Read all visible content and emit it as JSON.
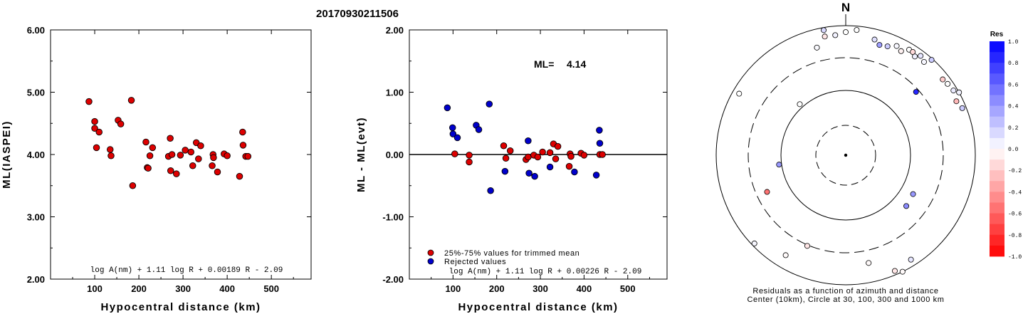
{
  "title": "20170930211506",
  "colors": {
    "red": "#dd0000",
    "blue": "#0000cc",
    "frame": "#000000"
  },
  "chart_data": [
    {
      "type": "scatter",
      "xlabel": "Hypocentral distance (km)",
      "ylabel": "ML(IASPEI)",
      "xlim": [
        0,
        590
      ],
      "ylim": [
        2.0,
        6.0
      ],
      "xticks": [
        "100",
        "200",
        "300",
        "400",
        "500"
      ],
      "xtick_values": [
        100,
        200,
        300,
        400,
        500
      ],
      "yticks": [
        "2.00",
        "3.00",
        "4.00",
        "5.00",
        "6.00"
      ],
      "ytick_values": [
        2,
        3,
        4,
        5,
        6
      ],
      "formula": "log A(nm) + 1.11 log R + 0.00189 R - 2.09",
      "series": [
        {
          "color": "red",
          "points": [
            [
              87,
              4.85
            ],
            [
              100,
              4.53
            ],
            [
              100,
              4.42
            ],
            [
              104,
              4.11
            ],
            [
              110,
              4.36
            ],
            [
              135,
              4.08
            ],
            [
              137,
              3.98
            ],
            [
              153,
              4.55
            ],
            [
              159,
              4.49
            ],
            [
              183,
              4.87
            ],
            [
              186,
              3.5
            ],
            [
              216,
              4.2
            ],
            [
              219,
              3.79
            ],
            [
              221,
              3.78
            ],
            [
              225,
              3.98
            ],
            [
              231,
              4.11
            ],
            [
              267,
              3.97
            ],
            [
              271,
              4.26
            ],
            [
              272,
              3.74
            ],
            [
              275,
              4.0
            ],
            [
              285,
              3.69
            ],
            [
              294,
              3.99
            ],
            [
              305,
              4.07
            ],
            [
              318,
              4.04
            ],
            [
              322,
              3.82
            ],
            [
              330,
              4.19
            ],
            [
              335,
              3.93
            ],
            [
              340,
              4.14
            ],
            [
              366,
              3.82
            ],
            [
              368,
              4.0
            ],
            [
              369,
              3.95
            ],
            [
              378,
              3.72
            ],
            [
              393,
              4.01
            ],
            [
              400,
              3.98
            ],
            [
              428,
              3.65
            ],
            [
              435,
              4.36
            ],
            [
              436,
              4.15
            ],
            [
              442,
              3.97
            ],
            [
              447,
              3.97
            ]
          ]
        }
      ]
    },
    {
      "type": "scatter",
      "xlabel": "Hypocentral distance (km)",
      "ylabel": "ML - ML(evt)",
      "xlim": [
        0,
        590
      ],
      "ylim": [
        -2.0,
        2.0
      ],
      "xticks": [
        "100",
        "200",
        "300",
        "400",
        "500"
      ],
      "xtick_values": [
        100,
        200,
        300,
        400,
        500
      ],
      "yticks": [
        "-2.00",
        "-1.00",
        "0.00",
        "1.00",
        "2.00"
      ],
      "ytick_values": [
        -2,
        -1,
        0,
        1,
        2
      ],
      "reference_line": 0,
      "ml_label": "ML=",
      "ml_value": "4.14",
      "formula": "log A(nm) + 1.11 log R + 0.00226 R - 2.09",
      "legend": [
        {
          "label": "25%-75% values for trimmed mean",
          "color": "red"
        },
        {
          "label": "Rejected values",
          "color": "blue"
        }
      ],
      "series": [
        {
          "color": "red",
          "points": [
            [
              104,
              0.01
            ],
            [
              137,
              -0.01
            ],
            [
              137,
              -0.12
            ],
            [
              216,
              0.14
            ],
            [
              221,
              -0.06
            ],
            [
              231,
              0.06
            ],
            [
              267,
              -0.08
            ],
            [
              272,
              -0.04
            ],
            [
              285,
              -0.01
            ],
            [
              294,
              -0.04
            ],
            [
              305,
              0.04
            ],
            [
              322,
              0.03
            ],
            [
              330,
              0.17
            ],
            [
              335,
              -0.07
            ],
            [
              340,
              0.13
            ],
            [
              366,
              -0.19
            ],
            [
              368,
              0.01
            ],
            [
              370,
              -0.03
            ],
            [
              393,
              0.02
            ],
            [
              400,
              -0.01
            ],
            [
              436,
              0.0
            ],
            [
              442,
              0.0
            ]
          ]
        },
        {
          "color": "blue",
          "points": [
            [
              87,
              0.75
            ],
            [
              99,
              0.43
            ],
            [
              100,
              0.33
            ],
            [
              110,
              0.27
            ],
            [
              153,
              0.47
            ],
            [
              159,
              0.4
            ],
            [
              183,
              0.81
            ],
            [
              186,
              -0.58
            ],
            [
              219,
              -0.27
            ],
            [
              272,
              0.22
            ],
            [
              274,
              -0.3
            ],
            [
              287,
              -0.35
            ],
            [
              322,
              -0.2
            ],
            [
              378,
              -0.28
            ],
            [
              428,
              -0.33
            ],
            [
              435,
              0.39
            ],
            [
              436,
              0.18
            ]
          ]
        }
      ]
    }
  ],
  "polar": {
    "north_label": "N",
    "caption_line1": "Residuals as a function of azimuth and distance",
    "caption_line2": "Center (10km), Circle at 30, 100, 300 and 1000 km",
    "colorbar_title": "Res",
    "colorbar_labels": [
      "1.0",
      "0.8",
      "0.6",
      "0.4",
      "0.2",
      "0.0",
      "-0.2",
      "-0.4",
      "-0.6",
      "-0.8",
      "-1.0"
    ],
    "stations": [
      [
        350,
        0.93,
        -0.1
      ],
      [
        355,
        0.93,
        0.05
      ],
      [
        0,
        0.95,
        0.0
      ],
      [
        5,
        0.97,
        0.0
      ],
      [
        345,
        0.86,
        0.02
      ],
      [
        14,
        0.92,
        0.12
      ],
      [
        17,
        0.89,
        0.38
      ],
      [
        21,
        0.9,
        0.2
      ],
      [
        25,
        0.93,
        0.03
      ],
      [
        28,
        0.91,
        -0.05
      ],
      [
        31,
        0.95,
        0.0
      ],
      [
        33,
        0.95,
        -0.15
      ],
      [
        35,
        0.93,
        0.06
      ],
      [
        37,
        0.96,
        0.1
      ],
      [
        40,
        0.94,
        0.03
      ],
      [
        42,
        0.99,
        0.2
      ],
      [
        48,
        0.73,
        0.85
      ],
      [
        52,
        0.95,
        -0.2
      ],
      [
        55,
        0.96,
        0.0
      ],
      [
        59,
        0.97,
        0.08
      ],
      [
        61,
        1.0,
        0.05
      ],
      [
        64,
        0.95,
        -0.28
      ],
      [
        68,
        0.97,
        0.2
      ],
      [
        120,
        0.6,
        0.4
      ],
      [
        130,
        0.61,
        0.45
      ],
      [
        148,
        0.95,
        0.1
      ],
      [
        154,
        1.0,
        -0.02
      ],
      [
        157,
        0.97,
        -0.1
      ],
      [
        168,
        0.85,
        -0.02
      ],
      [
        203,
        0.76,
        -0.1
      ],
      [
        211,
        0.9,
        -0.02
      ],
      [
        226,
        0.98,
        0.03
      ],
      [
        245,
        0.67,
        -0.55
      ],
      [
        262,
        0.52,
        0.4
      ],
      [
        318,
        0.53,
        0.0
      ],
      [
        350,
        0.98,
        0.15
      ],
      [
        300,
        0.95,
        0.0
      ]
    ]
  }
}
